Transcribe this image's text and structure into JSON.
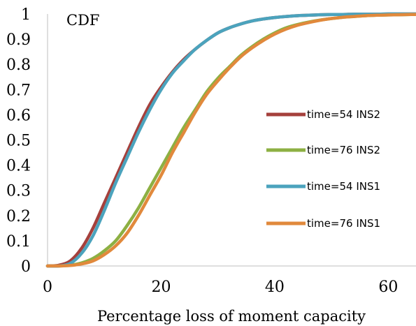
{
  "chart_data": {
    "type": "line",
    "title": "CDF",
    "xlabel": "Percentage loss of moment capacity",
    "ylabel": "",
    "xlim": [
      0,
      65
    ],
    "ylim": [
      0,
      1
    ],
    "x_ticks": [
      "0",
      "20",
      "40",
      "60"
    ],
    "y_ticks": [
      "0",
      "0.1",
      "0.2",
      "0.3",
      "0.4",
      "0.5",
      "0.6",
      "0.7",
      "0.8",
      "0.9",
      "1"
    ],
    "grid": false,
    "legend_position": "right",
    "x": [
      0,
      2,
      4,
      6,
      8,
      10,
      12,
      14,
      16,
      18,
      20,
      22,
      24,
      26,
      28,
      30,
      32,
      34,
      36,
      38,
      40,
      42,
      44,
      46,
      48,
      50,
      52,
      54,
      56,
      58,
      60,
      62,
      64,
      65
    ],
    "series": [
      {
        "name": "time=54 INS2",
        "color": "#A5403C",
        "values": [
          0.0,
          0.003,
          0.02,
          0.07,
          0.15,
          0.25,
          0.35,
          0.45,
          0.55,
          0.64,
          0.71,
          0.77,
          0.82,
          0.86,
          0.895,
          0.925,
          0.945,
          0.96,
          0.972,
          0.98,
          0.986,
          0.99,
          0.993,
          0.995,
          0.997,
          0.998,
          0.998,
          0.999,
          0.999,
          0.999,
          1.0,
          1.0,
          1.0,
          1.0
        ]
      },
      {
        "name": "time=76 INS2",
        "color": "#8DB043",
        "values": [
          0.0,
          0.0,
          0.003,
          0.012,
          0.03,
          0.06,
          0.1,
          0.16,
          0.23,
          0.31,
          0.39,
          0.47,
          0.55,
          0.62,
          0.69,
          0.745,
          0.79,
          0.835,
          0.87,
          0.9,
          0.925,
          0.945,
          0.958,
          0.968,
          0.976,
          0.982,
          0.987,
          0.99,
          0.993,
          0.995,
          0.996,
          0.997,
          0.998,
          0.998
        ]
      },
      {
        "name": "time=54 INS1",
        "color": "#4BA3BD",
        "values": [
          0.0,
          0.0,
          0.01,
          0.05,
          0.12,
          0.22,
          0.33,
          0.43,
          0.53,
          0.62,
          0.7,
          0.765,
          0.815,
          0.86,
          0.895,
          0.925,
          0.945,
          0.96,
          0.972,
          0.98,
          0.986,
          0.99,
          0.993,
          0.995,
          0.997,
          0.998,
          0.998,
          0.999,
          0.999,
          0.999,
          1.0,
          1.0,
          1.0,
          1.0
        ]
      },
      {
        "name": "time=76 INS1",
        "color": "#E1893C",
        "values": [
          0.0,
          0.0,
          0.002,
          0.008,
          0.02,
          0.045,
          0.08,
          0.13,
          0.2,
          0.28,
          0.36,
          0.45,
          0.53,
          0.61,
          0.68,
          0.735,
          0.785,
          0.83,
          0.865,
          0.895,
          0.92,
          0.94,
          0.955,
          0.966,
          0.975,
          0.982,
          0.987,
          0.99,
          0.993,
          0.995,
          0.996,
          0.997,
          0.998,
          0.998
        ]
      }
    ]
  }
}
